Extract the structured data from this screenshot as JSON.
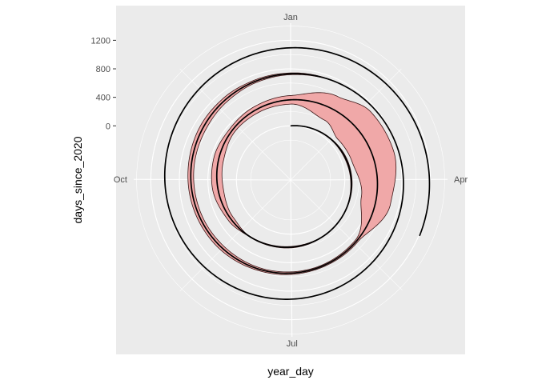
{
  "chart_data": {
    "type": "area",
    "coord": "polar",
    "xlabel": "year_day",
    "ylabel": "days_since_2020",
    "x_ticks": [
      {
        "label": "Jan",
        "value": 1
      },
      {
        "label": "Apr",
        "value": 92
      },
      {
        "label": "Jul",
        "value": 183
      },
      {
        "label": "Oct",
        "value": 275
      }
    ],
    "x_range": [
      1,
      366
    ],
    "y_ticks": [
      {
        "label": "0",
        "value": 0
      },
      {
        "label": "400",
        "value": 400
      },
      {
        "label": "800",
        "value": 800
      },
      {
        "label": "1200",
        "value": 1200
      }
    ],
    "y_range": [
      -760,
      1440
    ],
    "grid": true,
    "legend": "none",
    "series": [
      {
        "kind": "ribbon",
        "start_day": 0,
        "end_day": 1095,
        "control_points": [
          {
            "day": 0,
            "half_width": 0
          },
          {
            "day": 20,
            "half_width": 0
          },
          {
            "day": 40,
            "half_width": 5
          },
          {
            "day": 70,
            "half_width": 12
          },
          {
            "day": 90,
            "half_width": 10
          },
          {
            "day": 120,
            "half_width": 4
          },
          {
            "day": 150,
            "half_width": 4
          },
          {
            "day": 180,
            "half_width": 10
          },
          {
            "day": 220,
            "half_width": 5
          },
          {
            "day": 240,
            "half_width": 40
          },
          {
            "day": 268,
            "half_width": 75
          },
          {
            "day": 290,
            "half_width": 70
          },
          {
            "day": 315,
            "half_width": 40
          },
          {
            "day": 340,
            "half_width": 50
          },
          {
            "day": 365,
            "half_width": 60
          },
          {
            "day": 395,
            "half_width": 190
          },
          {
            "day": 415,
            "half_width": 300
          },
          {
            "day": 440,
            "half_width": 300
          },
          {
            "day": 470,
            "half_width": 210
          },
          {
            "day": 500,
            "half_width": 20
          },
          {
            "day": 530,
            "half_width": 15
          },
          {
            "day": 560,
            "half_width": 20
          },
          {
            "day": 600,
            "half_width": 35
          },
          {
            "day": 640,
            "half_width": 40
          },
          {
            "day": 670,
            "half_width": 45
          },
          {
            "day": 690,
            "half_width": 35
          },
          {
            "day": 710,
            "half_width": 20
          },
          {
            "day": 730,
            "half_width": 12
          },
          {
            "day": 760,
            "half_width": 0
          },
          {
            "day": 1095,
            "half_width": 0
          }
        ],
        "fill": "#f0a8a8",
        "stroke": "#3a1515"
      },
      {
        "kind": "line",
        "start_day": 0,
        "end_day": 1210,
        "color": "#000000"
      }
    ],
    "colors": {
      "panel_bg": "#ebebeb",
      "grid": "#ffffff",
      "ribbon_fill": "#f0a8a8",
      "ribbon_stroke": "#3a1515",
      "line": "#000000"
    }
  }
}
